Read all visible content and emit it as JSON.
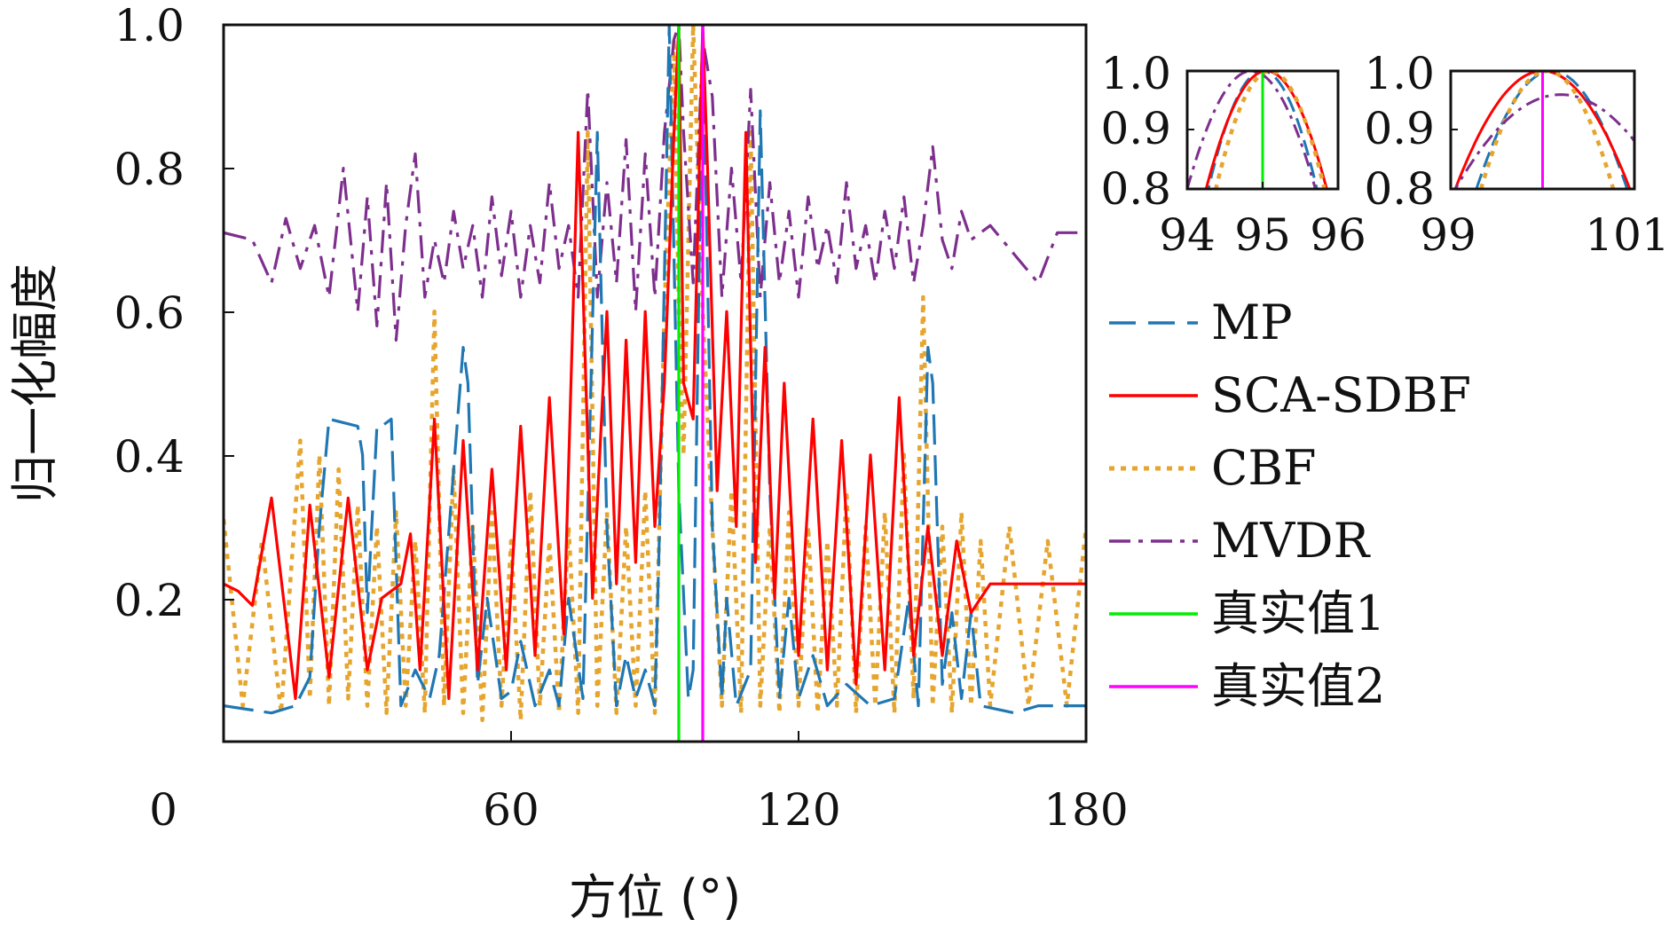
{
  "chart_data": {
    "type": "line",
    "title": "",
    "xlabel": "方位 (°)",
    "ylabel": "归一化幅度",
    "xlim": [
      0,
      180
    ],
    "ylim": [
      0,
      1.0
    ],
    "xticks": [
      "0",
      "60",
      "120",
      "180"
    ],
    "yticks": [
      "0.2",
      "0.4",
      "0.6",
      "0.8",
      "1.0"
    ],
    "grid": false,
    "legend_position": "right",
    "series": [
      {
        "name": "MP",
        "color": "#1f77b4",
        "style": "dashed",
        "x": [
          0,
          10,
          15,
          18,
          20,
          22,
          28,
          29,
          30,
          32,
          33,
          35,
          37,
          40,
          43,
          45,
          50,
          51,
          53,
          55,
          58,
          60,
          62,
          65,
          68,
          70,
          72,
          75,
          78,
          80,
          82,
          84,
          86,
          88,
          90,
          91,
          93,
          95,
          97,
          98,
          100,
          102,
          104,
          105,
          107,
          110,
          112,
          114,
          116,
          118,
          120,
          123,
          126,
          130,
          135,
          140,
          143,
          145,
          147,
          148,
          150,
          152,
          154,
          156,
          158,
          165,
          170,
          180
        ],
        "values": [
          0.05,
          0.04,
          0.05,
          0.09,
          0.3,
          0.45,
          0.44,
          0.4,
          0.18,
          0.44,
          0.44,
          0.45,
          0.05,
          0.1,
          0.06,
          0.12,
          0.55,
          0.5,
          0.08,
          0.2,
          0.06,
          0.07,
          0.14,
          0.05,
          0.1,
          0.05,
          0.2,
          0.06,
          0.85,
          0.3,
          0.05,
          0.12,
          0.06,
          0.1,
          0.05,
          0.3,
          1.0,
          0.35,
          0.06,
          0.1,
          1.0,
          0.3,
          0.06,
          0.2,
          0.05,
          0.1,
          0.88,
          0.35,
          0.06,
          0.2,
          0.06,
          0.12,
          0.05,
          0.08,
          0.05,
          0.06,
          0.2,
          0.05,
          0.55,
          0.5,
          0.08,
          0.18,
          0.06,
          0.18,
          0.05,
          0.04,
          0.05,
          0.05
        ]
      },
      {
        "name": "SCA-SDBF",
        "color": "#ff0000",
        "style": "solid",
        "x": [
          0,
          3,
          6,
          10,
          15,
          18,
          22,
          26,
          30,
          33,
          37,
          39,
          41,
          44,
          47,
          50,
          53,
          56,
          59,
          62,
          65,
          68,
          71,
          74,
          77,
          80,
          82,
          84,
          86,
          88,
          90,
          92,
          94,
          95,
          96,
          98,
          100,
          101,
          103,
          105,
          107,
          109,
          111,
          113,
          115,
          117,
          120,
          123,
          126,
          129,
          132,
          135,
          138,
          141,
          144,
          147,
          150,
          153,
          156,
          160,
          165,
          170,
          175,
          180
        ],
        "values": [
          0.22,
          0.21,
          0.19,
          0.34,
          0.06,
          0.33,
          0.09,
          0.34,
          0.1,
          0.2,
          0.22,
          0.29,
          0.1,
          0.45,
          0.06,
          0.42,
          0.1,
          0.38,
          0.1,
          0.44,
          0.12,
          0.48,
          0.15,
          0.85,
          0.2,
          0.6,
          0.22,
          0.56,
          0.25,
          0.6,
          0.3,
          0.5,
          0.85,
          1.0,
          0.5,
          0.45,
          1.0,
          0.8,
          0.35,
          0.6,
          0.3,
          0.85,
          0.25,
          0.55,
          0.2,
          0.5,
          0.12,
          0.45,
          0.1,
          0.42,
          0.08,
          0.4,
          0.1,
          0.48,
          0.12,
          0.3,
          0.12,
          0.28,
          0.18,
          0.22,
          0.22,
          0.22,
          0.22,
          0.22
        ]
      },
      {
        "name": "CBF",
        "color": "#e6a52e",
        "style": "dotted",
        "x": [
          0,
          4,
          8,
          12,
          16,
          18,
          20,
          22,
          24,
          26,
          28,
          30,
          32,
          34,
          36,
          38,
          40,
          42,
          44,
          46,
          48,
          50,
          52,
          54,
          56,
          58,
          60,
          62,
          64,
          66,
          68,
          70,
          72,
          74,
          76,
          78,
          80,
          82,
          84,
          86,
          88,
          90,
          92,
          94,
          95,
          96,
          98,
          100,
          102,
          104,
          106,
          108,
          110,
          112,
          114,
          116,
          118,
          120,
          122,
          124,
          126,
          128,
          130,
          132,
          134,
          136,
          138,
          140,
          142,
          144,
          146,
          148,
          150,
          152,
          154,
          156,
          158,
          160,
          164,
          168,
          172,
          176,
          180
        ],
        "values": [
          0.31,
          0.05,
          0.28,
          0.04,
          0.42,
          0.06,
          0.4,
          0.05,
          0.38,
          0.06,
          0.33,
          0.05,
          0.3,
          0.04,
          0.32,
          0.05,
          0.28,
          0.04,
          0.6,
          0.05,
          0.38,
          0.04,
          0.3,
          0.03,
          0.32,
          0.05,
          0.28,
          0.03,
          0.35,
          0.05,
          0.28,
          0.04,
          0.3,
          0.04,
          0.85,
          0.05,
          0.32,
          0.04,
          0.3,
          0.05,
          0.35,
          0.04,
          0.6,
          0.98,
          0.6,
          0.4,
          1.0,
          0.6,
          0.3,
          0.05,
          0.35,
          0.04,
          0.85,
          0.05,
          0.3,
          0.04,
          0.32,
          0.05,
          0.3,
          0.04,
          0.28,
          0.05,
          0.35,
          0.04,
          0.3,
          0.05,
          0.32,
          0.04,
          0.4,
          0.06,
          0.62,
          0.05,
          0.3,
          0.04,
          0.32,
          0.05,
          0.28,
          0.05,
          0.3,
          0.05,
          0.28,
          0.05,
          0.3
        ]
      },
      {
        "name": "MVDR",
        "color": "#7e2f8e",
        "style": "dashdot",
        "x": [
          0,
          6,
          10,
          13,
          16,
          19,
          22,
          25,
          28,
          30,
          32,
          34,
          36,
          38,
          40,
          42,
          44,
          46,
          48,
          50,
          52,
          54,
          56,
          58,
          60,
          62,
          64,
          66,
          68,
          70,
          72,
          74,
          76,
          78,
          80,
          82,
          84,
          86,
          88,
          90,
          92,
          94,
          95,
          96,
          98,
          100,
          102,
          104,
          106,
          108,
          110,
          112,
          114,
          116,
          118,
          120,
          122,
          124,
          126,
          128,
          130,
          132,
          134,
          136,
          138,
          140,
          142,
          144,
          146,
          148,
          150,
          152,
          154,
          156,
          160,
          165,
          170,
          174,
          180
        ],
        "values": [
          0.71,
          0.7,
          0.64,
          0.73,
          0.66,
          0.72,
          0.62,
          0.8,
          0.6,
          0.76,
          0.58,
          0.78,
          0.56,
          0.72,
          0.82,
          0.62,
          0.7,
          0.64,
          0.74,
          0.66,
          0.72,
          0.62,
          0.76,
          0.65,
          0.74,
          0.62,
          0.72,
          0.64,
          0.78,
          0.66,
          0.72,
          0.62,
          0.91,
          0.62,
          0.78,
          0.64,
          0.84,
          0.6,
          0.82,
          0.62,
          0.85,
          0.98,
          1.0,
          0.85,
          0.64,
          0.98,
          0.9,
          0.62,
          0.8,
          0.64,
          0.91,
          0.62,
          0.78,
          0.64,
          0.74,
          0.62,
          0.76,
          0.66,
          0.72,
          0.64,
          0.78,
          0.66,
          0.72,
          0.64,
          0.74,
          0.66,
          0.76,
          0.64,
          0.72,
          0.83,
          0.7,
          0.66,
          0.74,
          0.7,
          0.72,
          0.68,
          0.64,
          0.71,
          0.71
        ]
      },
      {
        "name": "真实值1",
        "color": "#00ee00",
        "style": "solid",
        "x": [
          95,
          95
        ],
        "values": [
          0,
          1.0
        ]
      },
      {
        "name": "真实值2",
        "color": "#ff00ff",
        "style": "solid",
        "x": [
          100,
          100
        ],
        "values": [
          0,
          1.0
        ]
      }
    ],
    "insets": [
      {
        "xlim": [
          94,
          96
        ],
        "ylim": [
          0.8,
          1.0
        ],
        "xticks": [
          "94",
          "95",
          "96"
        ],
        "yticks": [
          "0.8",
          "0.9",
          "1.0"
        ],
        "series": [
          {
            "name": "MP",
            "peak": 95.0,
            "halfwidth": 0.72,
            "color": "#1f77b4",
            "style": "dashed"
          },
          {
            "name": "SCA-SDBF",
            "peak": 95.05,
            "halfwidth": 0.8,
            "color": "#ff0000",
            "style": "solid"
          },
          {
            "name": "CBF",
            "peak": 95.1,
            "halfwidth": 0.72,
            "color": "#e6a52e",
            "style": "dotted"
          },
          {
            "name": "MVDR",
            "peak": 94.85,
            "halfwidth": 0.85,
            "color": "#7e2f8e",
            "style": "dashdot"
          },
          {
            "name": "真实值1",
            "line": 95.0,
            "color": "#00ee00",
            "style": "solid"
          }
        ]
      },
      {
        "xlim": [
          99,
          101
        ],
        "ylim": [
          0.8,
          1.0
        ],
        "xticks": [
          "99",
          "101"
        ],
        "yticks": [
          "0.8",
          "0.9",
          "1.0"
        ],
        "series": [
          {
            "name": "MP",
            "peak": 100.1,
            "halfwidth": 0.82,
            "color": "#1f77b4",
            "style": "dashed"
          },
          {
            "name": "SCA-SDBF",
            "peak": 100.0,
            "halfwidth": 0.95,
            "color": "#ff0000",
            "style": "solid"
          },
          {
            "name": "CBF",
            "peak": 100.05,
            "halfwidth": 0.72,
            "color": "#e6a52e",
            "style": "dotted"
          },
          {
            "name": "MVDR",
            "peak": 100.2,
            "halfwidth": 1.15,
            "peakval": 0.96,
            "color": "#7e2f8e",
            "style": "dashdot"
          },
          {
            "name": "真实值2",
            "line": 100.0,
            "color": "#ff00ff",
            "style": "solid"
          }
        ]
      }
    ]
  }
}
